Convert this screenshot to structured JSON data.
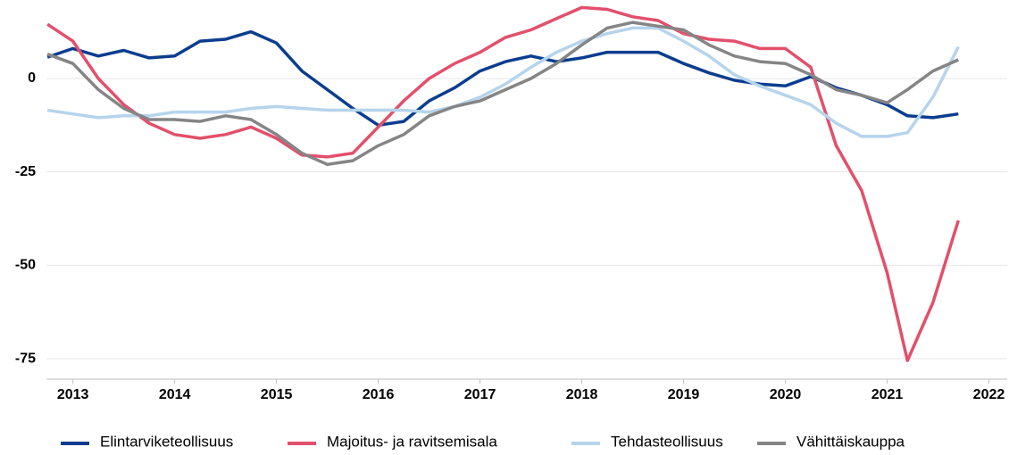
{
  "chart_data": {
    "type": "line",
    "x": [
      2012.75,
      2013.0,
      2013.25,
      2013.5,
      2013.75,
      2014.0,
      2014.25,
      2014.5,
      2014.75,
      2015.0,
      2015.25,
      2015.5,
      2015.75,
      2016.0,
      2016.25,
      2016.5,
      2016.75,
      2017.0,
      2017.25,
      2017.5,
      2017.75,
      2018.0,
      2018.25,
      2018.5,
      2018.75,
      2019.0,
      2019.25,
      2019.5,
      2019.75,
      2020.0,
      2020.25,
      2020.5,
      2020.75,
      2021.0,
      2021.2,
      2021.45,
      2021.7
    ],
    "series": [
      {
        "name": "Elintarviketeollisuus",
        "color": "#0b3d8f",
        "values": [
          5.7,
          8,
          6,
          7.5,
          5.5,
          6,
          10,
          10.5,
          12.5,
          9.5,
          2,
          -3,
          -8,
          -12.5,
          -11.5,
          -6,
          -2.5,
          2,
          4.5,
          6,
          4.5,
          5.5,
          7,
          7,
          7,
          4,
          1.5,
          -0.5,
          -1.5,
          -2,
          0.5,
          -2.5,
          -4.5,
          -7,
          -10,
          -10.5,
          -9.5
        ]
      },
      {
        "name": "Majoitus- ja ravitsemisala",
        "color": "#e2506b",
        "values": [
          14.5,
          10,
          0,
          -7,
          -12,
          -15,
          -16,
          -15,
          -13,
          -16,
          -20.5,
          -21,
          -20,
          -13,
          -6,
          0,
          4,
          7,
          11,
          13,
          16,
          19,
          18.5,
          16.5,
          15.5,
          12,
          10.5,
          10,
          8,
          8,
          3,
          -18,
          -30,
          -52,
          -75.5,
          -60,
          -38
        ]
      },
      {
        "name": "Tehdasteollisuus",
        "color": "#b6d4ec",
        "values": [
          -8.5,
          -9.5,
          -10.5,
          -10,
          -10,
          -9,
          -9,
          -9,
          -8,
          -7.5,
          -8,
          -8.5,
          -8.5,
          -8.5,
          -8.5,
          -9,
          -7.5,
          -5,
          -1.5,
          3,
          7,
          10,
          12,
          13.5,
          13.5,
          10,
          6,
          1,
          -2,
          -4.5,
          -7,
          -12,
          -15.5,
          -15.5,
          -14.5,
          -5,
          8.5
        ]
      },
      {
        "name": "Vähittäiskauppa",
        "color": "#858585",
        "values": [
          6.5,
          4,
          -3,
          -8,
          -11,
          -11,
          -11.5,
          -10,
          -11,
          -15,
          -20,
          -23,
          -22,
          -18,
          -15,
          -10,
          -7.5,
          -6,
          -3,
          0,
          4,
          9,
          13.5,
          15,
          14,
          13,
          9,
          6,
          4.5,
          4,
          1,
          -3,
          -4.5,
          -6.5,
          -3,
          2,
          5
        ]
      }
    ],
    "xlim": [
      2012.74,
      2022.18
    ],
    "xticks": [
      2013,
      2014,
      2015,
      2016,
      2017,
      2018,
      2019,
      2020,
      2021,
      2022
    ],
    "ylim": [
      -80,
      21
    ],
    "yticks": [
      -75,
      -50,
      -25,
      0
    ],
    "grid": true,
    "legend": "bottom"
  }
}
